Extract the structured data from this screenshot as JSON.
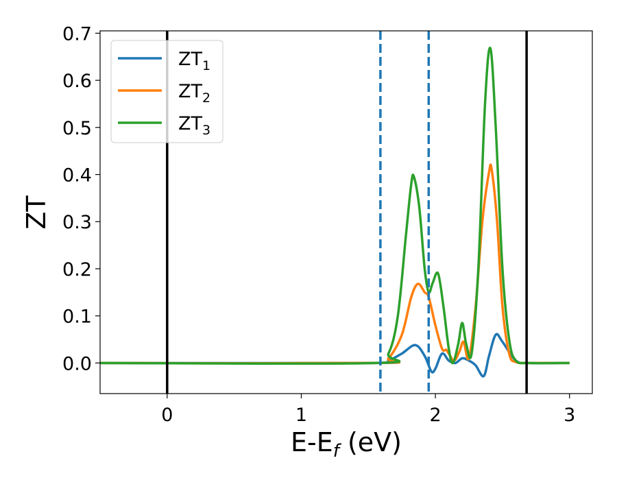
{
  "chart_data": {
    "type": "line",
    "xlabel_main": "E-E",
    "xlabel_sub": "f",
    "xlabel_unit": " (eV)",
    "ylabel": "ZT",
    "xlim": [
      -0.5,
      3.17
    ],
    "ylim": [
      -0.065,
      0.705
    ],
    "xticks": [
      0,
      1,
      2,
      3
    ],
    "yticks": [
      0.0,
      0.1,
      0.2,
      0.3,
      0.4,
      0.5,
      0.6,
      0.7
    ],
    "xtick_labels": [
      "0",
      "1",
      "2",
      "3"
    ],
    "ytick_labels": [
      "0.0",
      "0.1",
      "0.2",
      "0.3",
      "0.4",
      "0.5",
      "0.6",
      "0.7"
    ],
    "grid": false,
    "legend_position": "top-left",
    "vertical_lines": [
      {
        "x": 0.0,
        "style": "solid",
        "color": "#000000"
      },
      {
        "x": 2.68,
        "style": "solid",
        "color": "#000000"
      },
      {
        "x": 1.59,
        "style": "dashed",
        "color": "#1f77b4"
      },
      {
        "x": 1.95,
        "style": "dashed",
        "color": "#1f77b4"
      }
    ],
    "series": [
      {
        "name": "ZT",
        "sub": "1",
        "color": "#1f77b4",
        "x": [
          -0.5,
          1.55,
          1.65,
          1.75,
          1.85,
          1.92,
          1.97,
          2.0,
          2.05,
          2.1,
          2.15,
          2.2,
          2.25,
          2.3,
          2.36,
          2.4,
          2.45,
          2.5,
          2.6,
          2.7,
          3.0
        ],
        "values": [
          0.0,
          0.0,
          0.005,
          0.02,
          0.038,
          0.015,
          -0.018,
          -0.012,
          0.02,
          0.005,
          0.0,
          0.01,
          0.005,
          -0.005,
          -0.028,
          0.015,
          0.06,
          0.045,
          0.005,
          0.0,
          0.0
        ]
      },
      {
        "name": "ZT",
        "sub": "2",
        "color": "#ff7f0e",
        "x": [
          -0.5,
          1.55,
          1.65,
          1.75,
          1.82,
          1.87,
          1.92,
          1.95,
          2.0,
          2.05,
          2.08,
          2.1,
          2.14,
          2.18,
          2.21,
          2.25,
          2.3,
          2.35,
          2.4,
          2.42,
          2.46,
          2.5,
          2.55,
          2.6,
          2.7,
          3.0
        ],
        "values": [
          0.0,
          0.0,
          0.01,
          0.06,
          0.14,
          0.168,
          0.15,
          0.14,
          0.08,
          0.03,
          0.028,
          0.02,
          0.005,
          0.025,
          0.045,
          0.01,
          0.12,
          0.3,
          0.405,
          0.41,
          0.3,
          0.12,
          0.02,
          0.002,
          0.0,
          0.0
        ]
      },
      {
        "name": "ZT",
        "sub": "3",
        "color": "#2ca02c",
        "x": [
          -0.5,
          1.55,
          1.65,
          1.72,
          1.78,
          1.82,
          1.84,
          1.88,
          1.92,
          1.95,
          1.98,
          2.02,
          2.06,
          2.1,
          2.13,
          2.17,
          2.2,
          2.23,
          2.27,
          2.32,
          2.37,
          2.41,
          2.45,
          2.5,
          2.55,
          2.6,
          2.7,
          3.0
        ],
        "values": [
          0.0,
          0.0,
          0.02,
          0.1,
          0.27,
          0.38,
          0.395,
          0.33,
          0.2,
          0.15,
          0.17,
          0.19,
          0.12,
          0.03,
          0.0,
          0.04,
          0.085,
          0.04,
          0.02,
          0.2,
          0.55,
          0.668,
          0.5,
          0.2,
          0.05,
          0.005,
          0.0,
          0.0
        ]
      }
    ]
  }
}
